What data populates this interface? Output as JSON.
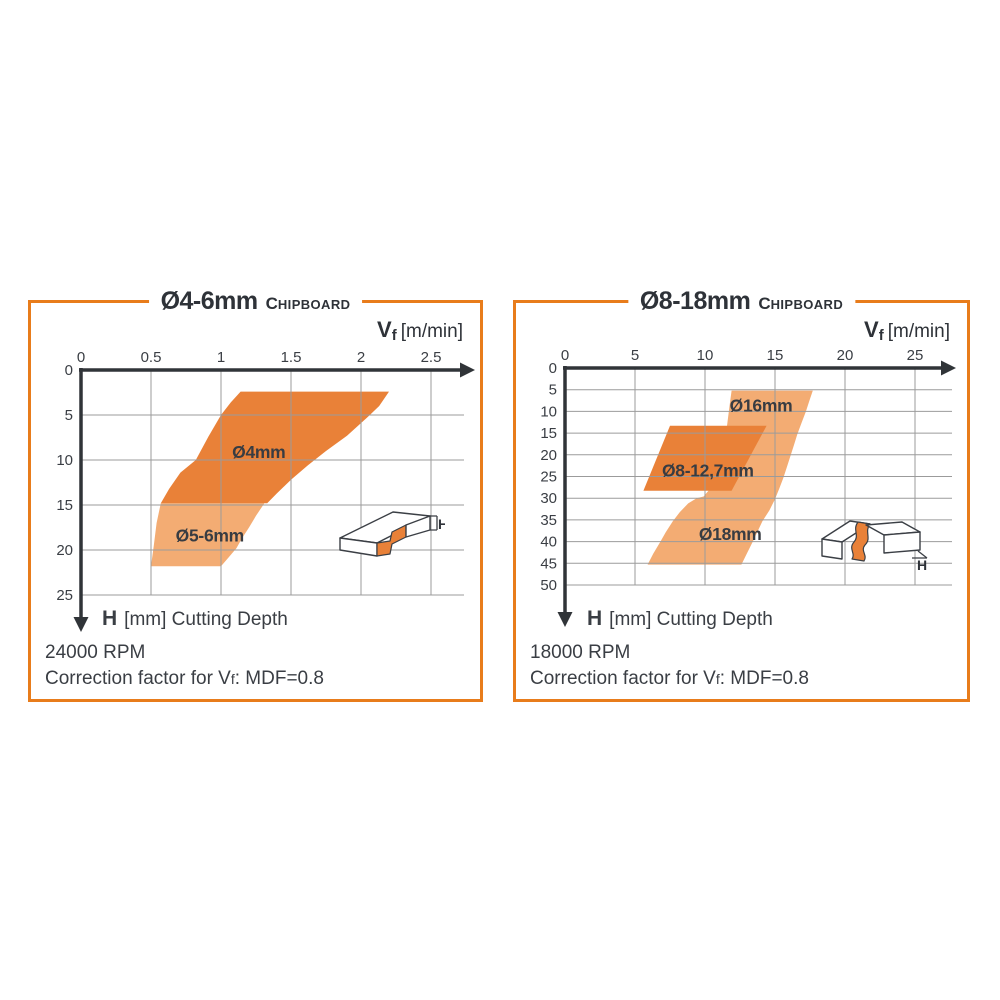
{
  "page": {
    "background": "#FFFFFF"
  },
  "colors": {
    "panel_border": "#E87C1B",
    "band_dark": "#E98138",
    "band_light": "#F3AC73",
    "grid_line": "#9B9B9B",
    "axis_line": "#303438",
    "text_dark": "#3A3E44"
  },
  "chart_data": [
    {
      "type": "area",
      "title_diameter": "Ø4-6mm",
      "material_initial": "C",
      "material_rest": "HIPBOARD",
      "x_title_symbol": "V",
      "x_title_sub": "f",
      "x_title_unit": "[m/min]",
      "x_ticks": [
        0,
        0.5,
        1,
        1.5,
        2,
        2.5
      ],
      "x_tick_labels": [
        "0",
        "0.5",
        "1",
        "1.5",
        "2",
        "2.5"
      ],
      "y_ticks": [
        0,
        5,
        10,
        15,
        20,
        25
      ],
      "y_tick_labels": [
        "0",
        "5",
        "10",
        "15",
        "20",
        "25"
      ],
      "xlim": [
        0,
        2.5
      ],
      "ylim": [
        0,
        25
      ],
      "y_title_symbol": "H",
      "y_title_rest": "[mm] Cutting Depth",
      "rpm": "24000 RPM",
      "correction_prefix": "Correction factor for V",
      "correction_sub": "f",
      "correction_suffix": ": MDF=0.8",
      "icon_dim_label": "H",
      "regions": [
        {
          "name": "d5-6mm-range",
          "shade": "light",
          "labels": [
            {
              "text": "Ø5-6mm",
              "pos": [
                0.92,
                18.4
              ]
            }
          ],
          "points": [
            [
              0.57,
              14.8
            ],
            [
              1.31,
              14.8
            ],
            [
              1.25,
              16.2
            ],
            [
              1.2,
              17.5
            ],
            [
              1.15,
              18.7
            ],
            [
              1.11,
              19.8
            ],
            [
              1.05,
              20.9
            ],
            [
              1.0,
              21.8
            ],
            [
              0.5,
              21.8
            ],
            [
              0.52,
              19.5
            ],
            [
              0.54,
              17.0
            ]
          ]
        },
        {
          "name": "d4mm-range",
          "shade": "dark",
          "labels": [
            {
              "text": "Ø4mm",
              "pos": [
                1.27,
                9.1
              ]
            }
          ],
          "points": [
            [
              1.14,
              2.4
            ],
            [
              2.2,
              2.4
            ],
            [
              2.13,
              4.0
            ],
            [
              2.05,
              5.2
            ],
            [
              1.9,
              7.3
            ],
            [
              1.75,
              9.0
            ],
            [
              1.62,
              10.6
            ],
            [
              1.5,
              12.2
            ],
            [
              1.4,
              13.7
            ],
            [
              1.33,
              14.8
            ],
            [
              0.57,
              14.8
            ],
            [
              0.63,
              13.2
            ],
            [
              0.71,
              11.4
            ],
            [
              0.82,
              10.0
            ],
            [
              0.91,
              7.4
            ],
            [
              1.0,
              5.0
            ],
            [
              1.07,
              3.6
            ]
          ]
        }
      ]
    },
    {
      "type": "area",
      "title_diameter": "Ø8-18mm",
      "material_initial": "C",
      "material_rest": "HIPBOARD",
      "x_title_symbol": "V",
      "x_title_sub": "f",
      "x_title_unit": "[m/min]",
      "x_ticks": [
        0,
        5,
        10,
        15,
        20,
        25
      ],
      "x_tick_labels": [
        "0",
        "5",
        "10",
        "15",
        "20",
        "25"
      ],
      "y_ticks": [
        0,
        5,
        10,
        15,
        20,
        25,
        30,
        35,
        40,
        45,
        50
      ],
      "y_tick_labels": [
        "0",
        "5",
        "10",
        "15",
        "20",
        "25",
        "30",
        "35",
        "40",
        "45",
        "50"
      ],
      "xlim": [
        0,
        25
      ],
      "ylim": [
        0,
        50
      ],
      "y_title_symbol": "H",
      "y_title_rest": "[mm] Cutting Depth",
      "rpm": "18000 RPM",
      "correction_prefix": "Correction factor for V",
      "correction_sub": "f",
      "correction_suffix": ": MDF=0.8",
      "icon_dim_label": "H",
      "regions": [
        {
          "name": "d16-18mm-range",
          "shade": "light",
          "labels": [
            {
              "text": "Ø16mm",
              "pos": [
                14.0,
                8.6
              ]
            },
            {
              "text": "Ø18mm",
              "pos": [
                11.8,
                38.3
              ]
            }
          ],
          "points": [
            [
              11.9,
              5.2
            ],
            [
              17.7,
              5.2
            ],
            [
              17.45,
              7.6
            ],
            [
              17.2,
              10.1
            ],
            [
              16.9,
              12.6
            ],
            [
              16.6,
              15.2
            ],
            [
              16.35,
              17.8
            ],
            [
              16.1,
              20.3
            ],
            [
              15.85,
              22.8
            ],
            [
              15.6,
              25.3
            ],
            [
              15.3,
              27.8
            ],
            [
              15.0,
              30.2
            ],
            [
              14.6,
              32.8
            ],
            [
              14.1,
              35.3
            ],
            [
              13.75,
              37.7
            ],
            [
              13.4,
              40.1
            ],
            [
              13.0,
              42.7
            ],
            [
              12.6,
              45.3
            ],
            [
              5.9,
              45.3
            ],
            [
              6.3,
              42.8
            ],
            [
              6.8,
              40.1
            ],
            [
              7.2,
              37.8
            ],
            [
              7.7,
              35.3
            ],
            [
              8.2,
              33.2
            ],
            [
              8.8,
              31.2
            ],
            [
              9.4,
              30.0
            ],
            [
              9.9,
              29.6
            ],
            [
              10.5,
              27.3
            ],
            [
              10.8,
              25.3
            ],
            [
              11.0,
              22.8
            ],
            [
              11.2,
              20.3
            ],
            [
              11.35,
              17.8
            ],
            [
              11.5,
              15.2
            ],
            [
              11.6,
              12.6
            ],
            [
              11.7,
              10.1
            ],
            [
              11.8,
              7.6
            ]
          ]
        },
        {
          "name": "d8-12.7mm-range",
          "shade": "dark",
          "labels": [
            {
              "text": "Ø8-12,7mm",
              "pos": [
                10.2,
                23.6
              ]
            }
          ],
          "points": [
            [
              7.5,
              13.3
            ],
            [
              14.4,
              13.3
            ],
            [
              11.9,
              28.3
            ],
            [
              5.6,
              28.3
            ]
          ]
        }
      ]
    }
  ]
}
